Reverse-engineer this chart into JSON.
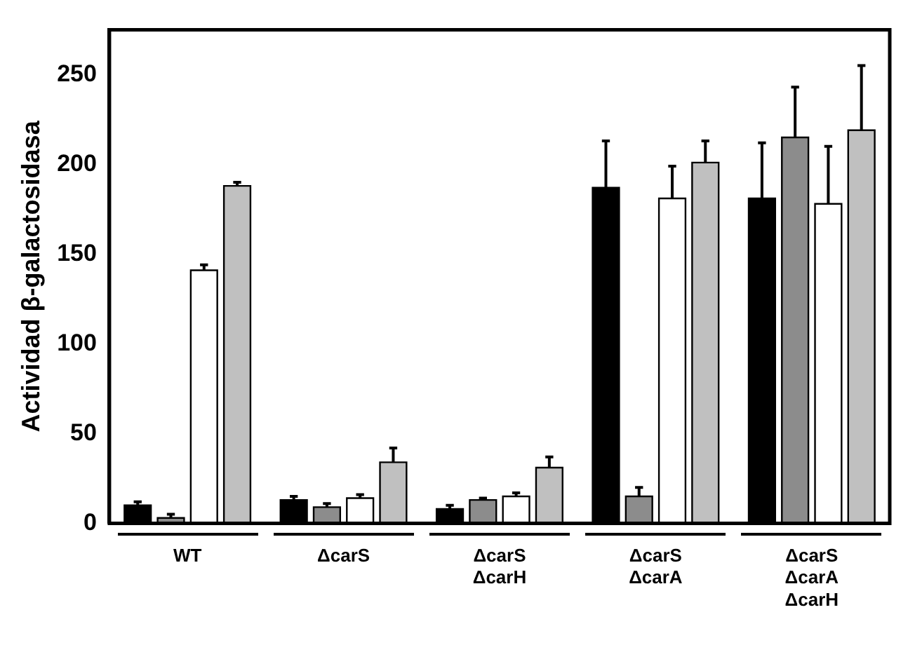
{
  "chart_data": {
    "type": "bar",
    "ylabel": "Actividad β-galactosidasa",
    "categories": [
      "WT",
      "ΔcarS",
      "ΔcarS\nΔcarH",
      "ΔcarS\nΔcarA",
      "ΔcarS\nΔcarA\nΔcarH"
    ],
    "series": [
      {
        "color": "#000000",
        "values": [
          10,
          13,
          8,
          187,
          181
        ],
        "errors": [
          [
            10,
            12
          ],
          [
            13,
            15
          ],
          [
            8,
            10
          ],
          [
            187,
            213
          ],
          [
            181,
            212
          ]
        ]
      },
      {
        "color": "#8c8c8c",
        "values": [
          3,
          9,
          13,
          15,
          215
        ],
        "errors": [
          [
            3,
            5
          ],
          [
            9,
            11
          ],
          [
            13,
            14
          ],
          [
            15,
            20
          ],
          [
            215,
            243
          ]
        ]
      },
      {
        "color": "#ffffff",
        "values": [
          141,
          14,
          15,
          181,
          178
        ],
        "errors": [
          [
            141,
            144
          ],
          [
            14,
            16
          ],
          [
            15,
            17
          ],
          [
            181,
            199
          ],
          [
            178,
            210
          ]
        ]
      },
      {
        "color": "#c0c0c0",
        "values": [
          188,
          34,
          31,
          201,
          219
        ],
        "errors": [
          [
            188,
            190
          ],
          [
            34,
            42
          ],
          [
            31,
            37
          ],
          [
            201,
            213
          ],
          [
            219,
            255
          ]
        ]
      }
    ],
    "ylim": [
      0,
      275
    ],
    "yticks": [
      0,
      50,
      100,
      150,
      200,
      250
    ],
    "grid": false,
    "legend": false
  }
}
